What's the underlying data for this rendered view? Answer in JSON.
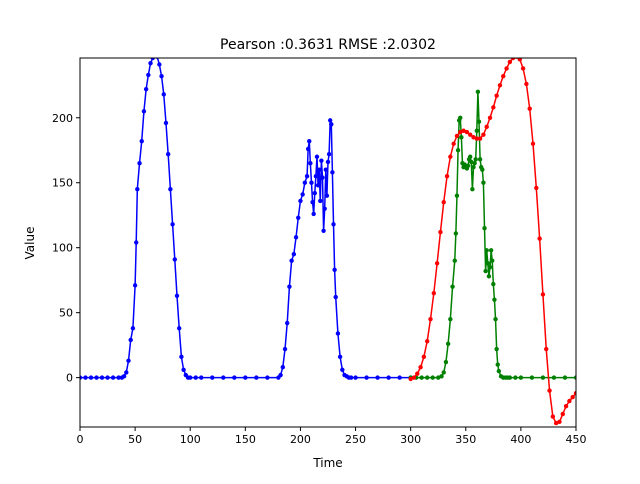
{
  "chart_data": {
    "type": "line",
    "title": "Pearson :0.3631  RMSE :2.0302",
    "xlabel": "Time",
    "ylabel": "Value",
    "xlim": [
      0,
      450
    ],
    "ylim": [
      -38,
      246
    ],
    "xticks": [
      0,
      50,
      100,
      150,
      200,
      250,
      300,
      350,
      400,
      450
    ],
    "yticks": [
      0,
      50,
      100,
      150,
      200
    ],
    "grid": false,
    "legend": null,
    "series": [
      {
        "color": "#0000ff",
        "marker": "dot",
        "x": [
          0,
          5,
          10,
          15,
          20,
          25,
          30,
          35,
          38,
          40,
          42,
          44,
          46,
          48,
          50,
          51,
          52,
          54,
          56,
          58,
          60,
          62,
          64,
          66,
          68,
          70,
          72,
          74,
          76,
          78,
          80,
          82,
          84,
          86,
          88,
          90,
          92,
          94,
          96,
          98,
          100,
          105,
          110,
          120,
          130,
          140,
          150,
          160,
          170,
          180,
          182,
          184,
          186,
          188,
          190,
          192,
          194,
          196,
          198,
          200,
          202,
          204,
          206,
          207,
          208,
          209,
          210,
          211,
          212,
          213,
          214,
          215,
          216,
          217,
          218,
          219,
          220,
          221,
          222,
          223,
          224,
          225,
          226,
          227,
          228,
          229,
          230,
          231,
          232,
          234,
          236,
          238,
          240,
          242,
          244,
          246,
          250,
          260,
          270,
          280,
          290,
          300
        ],
        "y": [
          0,
          0,
          0,
          0,
          0,
          0,
          0,
          0,
          0,
          1,
          4,
          13,
          29,
          38,
          71,
          104,
          145,
          165,
          182,
          205,
          222,
          233,
          242,
          246,
          248,
          247,
          241,
          232,
          218,
          196,
          172,
          145,
          118,
          91,
          63,
          38,
          16,
          6,
          2,
          0,
          0,
          0,
          0,
          0,
          0,
          0,
          0,
          0,
          0,
          0,
          2,
          8,
          22,
          42,
          70,
          90,
          95,
          108,
          123,
          136,
          141,
          150,
          155,
          176,
          182,
          165,
          150,
          135,
          126,
          142,
          155,
          170,
          148,
          160,
          136,
          167,
          154,
          113,
          130,
          160,
          140,
          166,
          172,
          198,
          195,
          158,
          118,
          83,
          62,
          34,
          16,
          6,
          2,
          1,
          0,
          0,
          0,
          0,
          0,
          0,
          0,
          0
        ]
      },
      {
        "color": "#008000",
        "marker": "dot",
        "x": [
          300,
          305,
          310,
          315,
          320,
          325,
          328,
          330,
          332,
          334,
          336,
          338,
          340,
          341,
          342,
          343,
          344,
          345,
          346,
          347,
          348,
          349,
          350,
          351,
          352,
          353,
          354,
          355,
          356,
          357,
          358,
          359,
          360,
          361,
          362,
          363,
          364,
          365,
          366,
          367,
          368,
          369,
          370,
          371,
          372,
          373,
          374,
          375,
          376,
          377,
          378,
          379,
          380,
          382,
          384,
          386,
          388,
          390,
          395,
          400,
          410,
          420,
          430,
          440,
          450
        ],
        "y": [
          0,
          0,
          0,
          0,
          0,
          0,
          1,
          4,
          12,
          26,
          45,
          70,
          90,
          111,
          140,
          175,
          198,
          200,
          185,
          165,
          162,
          164,
          162,
          161,
          163,
          168,
          170,
          166,
          145,
          162,
          165,
          168,
          190,
          220,
          197,
          168,
          162,
          160,
          150,
          115,
          82,
          98,
          88,
          78,
          85,
          98,
          90,
          72,
          60,
          45,
          22,
          10,
          5,
          1,
          0,
          0,
          0,
          0,
          0,
          0,
          0,
          0,
          0,
          0,
          0
        ]
      },
      {
        "color": "#ff0000",
        "marker": "dot",
        "x": [
          300,
          303,
          306,
          309,
          312,
          315,
          318,
          321,
          324,
          327,
          330,
          333,
          336,
          339,
          342,
          345,
          348,
          351,
          354,
          357,
          360,
          363,
          366,
          369,
          372,
          375,
          378,
          381,
          384,
          387,
          390,
          393,
          396,
          399,
          402,
          405,
          408,
          411,
          414,
          417,
          420,
          423,
          426,
          429,
          432,
          435,
          438,
          441,
          444,
          447,
          450
        ],
        "y": [
          -1,
          0,
          3,
          8,
          16,
          28,
          45,
          65,
          88,
          112,
          135,
          155,
          170,
          180,
          186,
          189,
          190,
          189,
          187,
          185,
          184,
          184,
          187,
          193,
          200,
          208,
          217,
          225,
          232,
          238,
          243,
          246,
          247,
          245,
          238,
          226,
          207,
          180,
          146,
          107,
          64,
          22,
          -10,
          -30,
          -35,
          -34,
          -28,
          -22,
          -18,
          -15,
          -12
        ]
      }
    ]
  }
}
